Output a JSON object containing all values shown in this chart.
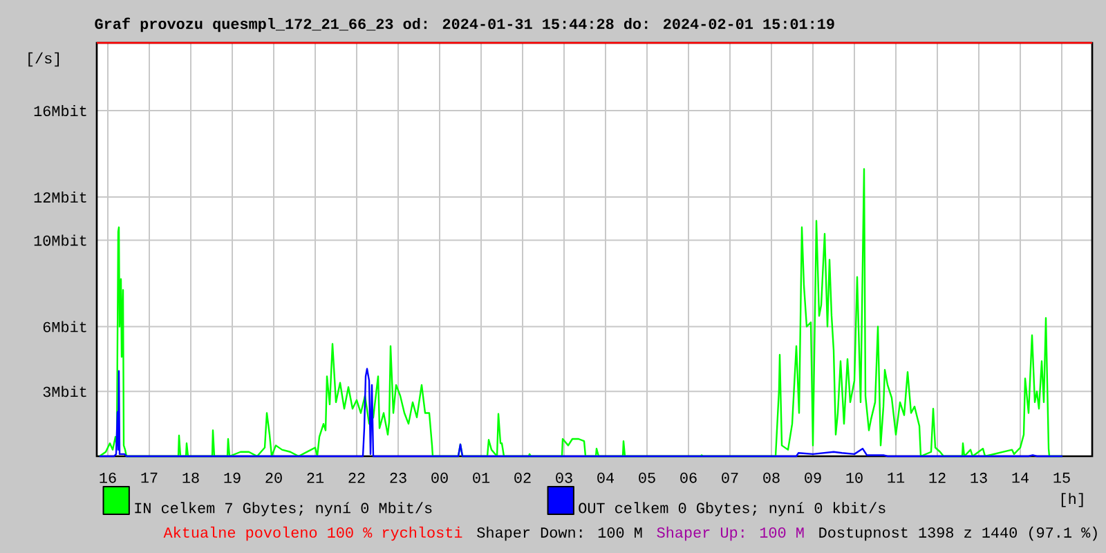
{
  "chart_data": {
    "type": "line",
    "title": "Graf provozu quesmpl_172_21_66_23 od: 2024-01-31 15:44:28 do: 2024-02-01 15:01:19",
    "xlabel": "[h]",
    "ylabel": "[/s]",
    "xlim": [
      "2024-01-31T15:44",
      "2024-02-01T15:44"
    ],
    "ylim": [
      0,
      19.14
    ],
    "xticks": [
      {
        "value": "2024-01-31T16:00",
        "label": "16"
      },
      {
        "value": "2024-01-31T17:00",
        "label": "17"
      },
      {
        "value": "2024-01-31T18:00",
        "label": "18"
      },
      {
        "value": "2024-01-31T19:00",
        "label": "19"
      },
      {
        "value": "2024-01-31T20:00",
        "label": "20"
      },
      {
        "value": "2024-01-31T21:00",
        "label": "21"
      },
      {
        "value": "2024-01-31T22:00",
        "label": "22"
      },
      {
        "value": "2024-01-31T23:00",
        "label": "23"
      },
      {
        "value": "2024-02-01T00:00",
        "label": "00"
      },
      {
        "value": "2024-02-01T01:00",
        "label": "01"
      },
      {
        "value": "2024-02-01T02:00",
        "label": "02"
      },
      {
        "value": "2024-02-01T03:00",
        "label": "03"
      },
      {
        "value": "2024-02-01T04:00",
        "label": "04"
      },
      {
        "value": "2024-02-01T05:00",
        "label": "05"
      },
      {
        "value": "2024-02-01T06:00",
        "label": "06"
      },
      {
        "value": "2024-02-01T07:00",
        "label": "07"
      },
      {
        "value": "2024-02-01T08:00",
        "label": "08"
      },
      {
        "value": "2024-02-01T09:00",
        "label": "09"
      },
      {
        "value": "2024-02-01T10:00",
        "label": "10"
      },
      {
        "value": "2024-02-01T11:00",
        "label": "11"
      },
      {
        "value": "2024-02-01T12:00",
        "label": "12"
      },
      {
        "value": "2024-02-01T13:00",
        "label": "13"
      },
      {
        "value": "2024-02-01T14:00",
        "label": "14"
      },
      {
        "value": "2024-02-01T15:00",
        "label": "15"
      }
    ],
    "yticks": [
      {
        "value": 3,
        "label": "3Mbit"
      },
      {
        "value": 6,
        "label": "6Mbit"
      },
      {
        "value": 10,
        "label": "10Mbit"
      },
      {
        "value": 12,
        "label": "12Mbit"
      },
      {
        "value": 16,
        "label": "16Mbit"
      }
    ],
    "grid": true,
    "legend": "bottom",
    "ref_lines": [
      {
        "axis": "y",
        "value": 19.14,
        "color": "#ff0000"
      }
    ],
    "series": [
      {
        "name": "IN celkem 7 Gbytes; nyní 0 Mbit/s",
        "color": "#00ff00",
        "x": [
          "2024-01-31T15:48",
          "2024-01-31T15:57",
          "2024-01-31T16:03",
          "2024-01-31T16:07",
          "2024-01-31T16:11",
          "2024-01-31T16:13",
          "2024-01-31T16:15",
          "2024-01-31T16:16",
          "2024-01-31T16:17",
          "2024-01-31T16:19",
          "2024-01-31T16:20",
          "2024-01-31T16:22",
          "2024-01-31T16:23",
          "2024-01-31T16:25",
          "2024-01-31T16:27",
          "2024-01-31T17:42",
          "2024-01-31T17:43",
          "2024-01-31T17:45",
          "2024-01-31T17:53",
          "2024-01-31T17:54",
          "2024-01-31T17:56",
          "2024-01-31T18:31",
          "2024-01-31T18:32",
          "2024-01-31T18:34",
          "2024-01-31T18:53",
          "2024-01-31T18:54",
          "2024-01-31T18:56",
          "2024-01-31T19:12",
          "2024-01-31T19:24",
          "2024-01-31T19:36",
          "2024-01-31T19:47",
          "2024-01-31T19:50",
          "2024-01-31T19:54",
          "2024-01-31T19:57",
          "2024-01-31T20:03",
          "2024-01-31T20:12",
          "2024-01-31T20:24",
          "2024-01-31T20:36",
          "2024-01-31T20:54",
          "2024-01-31T21:00",
          "2024-01-31T21:03",
          "2024-01-31T21:06",
          "2024-01-31T21:12",
          "2024-01-31T21:15",
          "2024-01-31T21:17",
          "2024-01-31T21:21",
          "2024-01-31T21:25",
          "2024-01-31T21:30",
          "2024-01-31T21:36",
          "2024-01-31T21:42",
          "2024-01-31T21:48",
          "2024-01-31T21:54",
          "2024-01-31T22:00",
          "2024-01-31T22:06",
          "2024-01-31T22:12",
          "2024-01-31T22:18",
          "2024-01-31T22:24",
          "2024-01-31T22:31",
          "2024-01-31T22:33",
          "2024-01-31T22:39",
          "2024-01-31T22:45",
          "2024-01-31T22:47",
          "2024-01-31T22:49",
          "2024-01-31T22:53",
          "2024-01-31T22:57",
          "2024-01-31T23:03",
          "2024-01-31T23:09",
          "2024-01-31T23:15",
          "2024-01-31T23:21",
          "2024-01-31T23:27",
          "2024-01-31T23:34",
          "2024-01-31T23:39",
          "2024-01-31T23:45",
          "2024-01-31T23:49",
          "2024-01-31T23:50",
          "2024-02-01T00:27",
          "2024-02-01T00:30",
          "2024-02-01T00:33",
          "2024-02-01T01:09",
          "2024-02-01T01:11",
          "2024-02-01T01:15",
          "2024-02-01T01:23",
          "2024-02-01T01:25",
          "2024-02-01T01:28",
          "2024-02-01T01:30",
          "2024-02-01T01:33",
          "2024-02-01T02:09",
          "2024-02-01T02:10",
          "2024-02-01T02:12",
          "2024-02-01T02:57",
          "2024-02-01T02:58",
          "2024-02-01T03:06",
          "2024-02-01T03:12",
          "2024-02-01T03:21",
          "2024-02-01T03:29",
          "2024-02-01T03:31",
          "2024-02-01T03:46",
          "2024-02-01T03:47",
          "2024-02-01T03:50",
          "2024-02-01T04:25",
          "2024-02-01T04:26",
          "2024-02-01T04:28",
          "2024-02-01T06:18",
          "2024-02-01T06:19",
          "2024-02-01T06:21",
          "2024-02-01T07:00",
          "2024-02-01T08:06",
          "2024-02-01T08:11",
          "2024-02-01T08:12",
          "2024-02-01T08:15",
          "2024-02-01T08:24",
          "2024-02-01T08:30",
          "2024-02-01T08:36",
          "2024-02-01T08:40",
          "2024-02-01T08:44",
          "2024-02-01T08:47",
          "2024-02-01T08:51",
          "2024-02-01T08:57",
          "2024-02-01T09:00",
          "2024-02-01T09:05",
          "2024-02-01T09:09",
          "2024-02-01T09:12",
          "2024-02-01T09:17",
          "2024-02-01T09:21",
          "2024-02-01T09:24",
          "2024-02-01T09:27",
          "2024-02-01T09:30",
          "2024-02-01T09:33",
          "2024-02-01T09:36",
          "2024-02-01T09:40",
          "2024-02-01T09:45",
          "2024-02-01T09:50",
          "2024-02-01T09:54",
          "2024-02-01T10:00",
          "2024-02-01T10:04",
          "2024-02-01T10:09",
          "2024-02-01T10:14",
          "2024-02-01T10:16",
          "2024-02-01T10:21",
          "2024-02-01T10:24",
          "2024-02-01T10:30",
          "2024-02-01T10:34",
          "2024-02-01T10:38",
          "2024-02-01T10:42",
          "2024-02-01T10:44",
          "2024-02-01T10:48",
          "2024-02-01T10:54",
          "2024-02-01T11:00",
          "2024-02-01T11:06",
          "2024-02-01T11:12",
          "2024-02-01T11:17",
          "2024-02-01T11:22",
          "2024-02-01T11:27",
          "2024-02-01T11:34",
          "2024-02-01T11:36",
          "2024-02-01T11:51",
          "2024-02-01T11:54",
          "2024-02-01T11:57",
          "2024-02-01T12:04",
          "2024-02-01T12:09",
          "2024-02-01T12:36",
          "2024-02-01T12:37",
          "2024-02-01T12:39",
          "2024-02-01T12:48",
          "2024-02-01T12:51",
          "2024-02-01T13:06",
          "2024-02-01T13:09",
          "2024-02-01T13:48",
          "2024-02-01T13:51",
          "2024-02-01T14:00",
          "2024-02-01T14:05",
          "2024-02-01T14:07",
          "2024-02-01T14:12",
          "2024-02-01T14:17",
          "2024-02-01T14:21",
          "2024-02-01T14:24",
          "2024-02-01T14:27",
          "2024-02-01T14:31",
          "2024-02-01T14:34",
          "2024-02-01T14:37",
          "2024-02-01T14:41",
          "2024-02-01T14:42",
          "2024-02-01T15:01"
        ],
        "values": [
          0,
          0.2,
          0.6,
          0.3,
          0.9,
          0.5,
          10.4,
          10.6,
          6.0,
          8.2,
          4.6,
          7.7,
          0.5,
          0.3,
          0,
          0,
          0.96,
          0,
          0,
          0.6,
          0,
          0,
          1.2,
          0,
          0,
          0.8,
          0,
          0.2,
          0.2,
          0,
          0.4,
          2.0,
          1.0,
          0,
          0.5,
          0.3,
          0.2,
          0,
          0.3,
          0.4,
          0,
          0.9,
          1.5,
          1.2,
          3.7,
          2.4,
          5.2,
          2.5,
          3.4,
          2.2,
          3.2,
          2.2,
          2.6,
          2.0,
          2.8,
          1.5,
          1.8,
          3.7,
          1.3,
          2.0,
          1.0,
          1.6,
          5.1,
          2.0,
          3.3,
          2.8,
          2.0,
          1.5,
          2.5,
          1.8,
          3.3,
          2.0,
          2.0,
          0.5,
          0,
          0,
          0.55,
          0,
          0,
          0.76,
          0.3,
          0,
          1.96,
          0.6,
          0.6,
          0,
          0,
          0.1,
          0,
          0,
          0.8,
          0.5,
          0.8,
          0.8,
          0.7,
          0,
          0,
          0.35,
          0,
          0,
          0.7,
          0,
          0,
          0.05,
          0,
          0,
          0,
          3.1,
          4.7,
          0.5,
          0.3,
          1.5,
          5.1,
          2.0,
          10.6,
          7.9,
          6.0,
          6.2,
          0.5,
          10.9,
          6.5,
          7.0,
          10.3,
          6.0,
          9.1,
          6.5,
          4.9,
          1.0,
          2.0,
          4.4,
          1.5,
          4.5,
          2.5,
          3.5,
          8.3,
          2.5,
          13.3,
          2.8,
          1.2,
          1.7,
          2.5,
          6.0,
          0.5,
          2.3,
          4.0,
          3.3,
          2.7,
          1.0,
          2.5,
          1.9,
          3.9,
          2.0,
          2.3,
          1.4,
          0,
          0.2,
          2.2,
          0.4,
          0.2,
          0,
          0,
          0.6,
          0,
          0.3,
          0,
          0.35,
          0,
          0.3,
          0.1,
          0.4,
          1.0,
          3.6,
          2.0,
          5.6,
          2.5,
          3.0,
          2.2,
          4.4,
          2.5,
          6.4,
          0.35,
          0,
          0
        ]
      },
      {
        "name": "OUT celkem 0 Gbytes; nyní 0 kbit/s",
        "color": "#0000ff",
        "x": [
          "2024-01-31T15:48",
          "2024-01-31T16:09",
          "2024-01-31T16:12",
          "2024-01-31T16:14",
          "2024-01-31T16:15",
          "2024-01-31T16:16",
          "2024-01-31T16:17",
          "2024-01-31T16:24",
          "2024-01-31T16:27",
          "2024-01-31T22:09",
          "2024-01-31T22:11",
          "2024-01-31T22:13",
          "2024-01-31T22:15",
          "2024-01-31T22:18",
          "2024-01-31T22:20",
          "2024-01-31T22:22",
          "2024-01-31T22:24",
          "2024-02-01T00:27",
          "2024-02-01T00:30",
          "2024-02-01T00:33",
          "2024-02-01T08:36",
          "2024-02-01T08:39",
          "2024-02-01T09:00",
          "2024-02-01T09:30",
          "2024-02-01T09:42",
          "2024-02-01T10:00",
          "2024-02-01T10:12",
          "2024-02-01T10:18",
          "2024-02-01T10:42",
          "2024-02-01T10:48",
          "2024-02-01T14:12",
          "2024-02-01T14:18",
          "2024-02-01T14:24",
          "2024-02-01T15:01"
        ],
        "values": [
          0,
          0,
          0.1,
          2.05,
          0.3,
          3.95,
          0.1,
          0.1,
          0,
          0,
          1.3,
          3.7,
          4.05,
          3.5,
          0.1,
          3.3,
          0,
          0,
          0.55,
          0,
          0,
          0.15,
          0.1,
          0.2,
          0.15,
          0.1,
          0.35,
          0.05,
          0.05,
          0,
          0,
          0.05,
          0,
          0
        ]
      }
    ],
    "annotations": [
      "Aktualne povoleno 100 % rychlosti",
      "Shaper Down: 100 M",
      "Shaper Up: 100 M",
      "Dostupnost 1398 z 1440 (97.1 %)"
    ]
  }
}
